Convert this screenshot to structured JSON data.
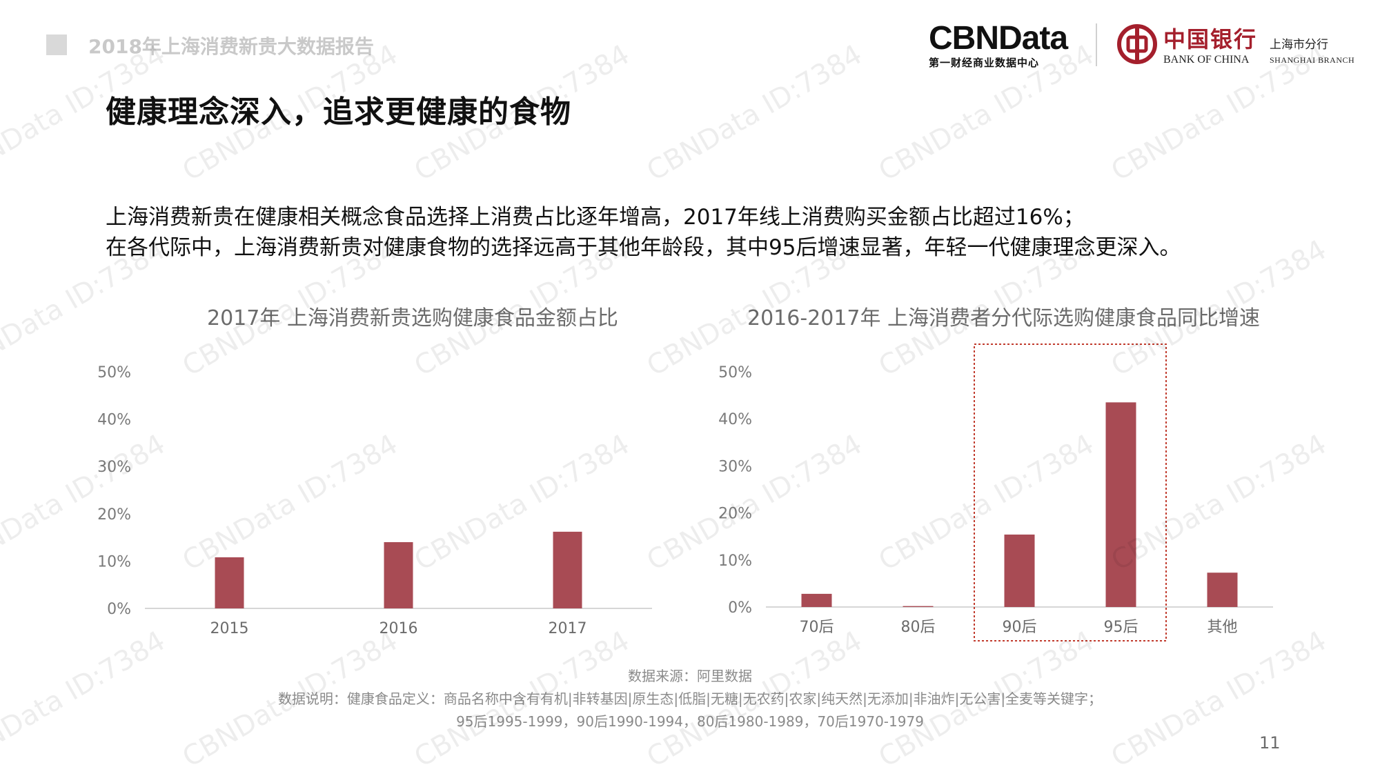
{
  "header": {
    "report_title": "2018年上海消费新贵大数据报告",
    "page_title": "健康理念深入，追求更健康的食物"
  },
  "logos": {
    "cbn_main": "CBNData",
    "cbn_sub": "第一财经商业数据中心",
    "boc_cn": "中国银行",
    "boc_en": "BANK OF CHINA",
    "boc_branch_cn": "上海市分行",
    "boc_branch_en": "SHANGHAI BRANCH",
    "brand_red": "#a41f2c"
  },
  "description": {
    "line1": "上海消费新贵在健康相关概念食品选择上消费占比逐年增高，2017年线上消费购买金额占比超过16%；",
    "line2": "在各代际中，上海消费新贵对健康食物的选择远高于其他年龄段，其中95后增速显著，年轻一代健康理念更深入。"
  },
  "chart_data": [
    {
      "type": "bar",
      "title": "2017年 上海消费新贵选购健康食品金额占比",
      "categories": [
        "2015",
        "2016",
        "2017"
      ],
      "values": [
        10.8,
        14.0,
        16.2
      ],
      "unit": "%",
      "ylim": [
        0,
        50
      ],
      "yticks": [
        "0%",
        "10%",
        "20%",
        "30%",
        "40%",
        "50%"
      ],
      "grid": false,
      "bar_color": "#a84b54"
    },
    {
      "type": "bar",
      "title": "2016-2017年 上海消费者分代际选购健康食品同比增速",
      "categories": [
        "70后",
        "80后",
        "90后",
        "95后",
        "其他"
      ],
      "values": [
        2.8,
        0.2,
        15.4,
        43.5,
        7.3
      ],
      "unit": "%",
      "ylim": [
        0,
        50
      ],
      "yticks": [
        "0%",
        "10%",
        "20%",
        "30%",
        "40%",
        "50%"
      ],
      "grid": false,
      "highlight_categories": [
        "90后",
        "95后"
      ],
      "bar_color": "#a84b54",
      "highlight_color": "#c0392b"
    }
  ],
  "footer": {
    "source": "数据来源：阿里数据",
    "note": "数据说明：健康食品定义：商品名称中含有有机|非转基因|原生态|低脂|无糖|无农药|农家|纯天然|无添加|非油炸|无公害|全麦等关键字；",
    "generations": "95后1995-1999，90后1990-1994，80后1980-1989，70后1970-1979"
  },
  "page_number": "11",
  "watermark": "CBNData ID:7384"
}
